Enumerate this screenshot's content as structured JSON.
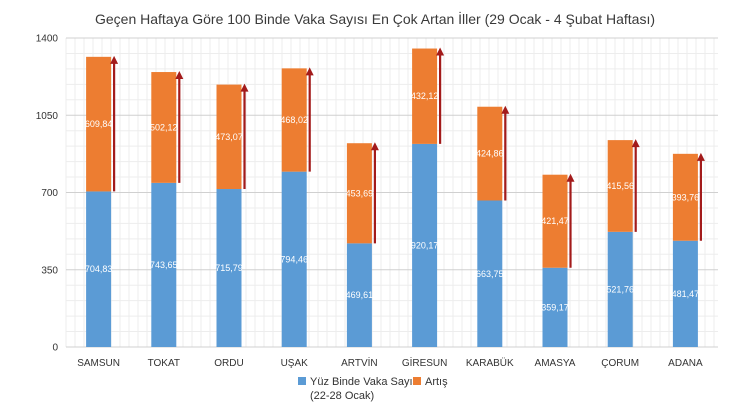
{
  "chart_data": {
    "type": "bar",
    "stacked": true,
    "title": "Geçen Haftaya Göre 100 Binde Vaka Sayısı En Çok Artan İller (29 Ocak - 4 Şubat Haftası)",
    "categories": [
      "SAMSUN",
      "TOKAT",
      "ORDU",
      "UŞAK",
      "ARTVİN",
      "GİRESUN",
      "KARABÜK",
      "AMASYA",
      "ÇORUM",
      "ADANA"
    ],
    "series": [
      {
        "name": "Yüz Binde Vaka Sayısı (22-28 Ocak)",
        "legend_lines": [
          "Yüz Binde Vaka Sayısı",
          "(22-28 Ocak)"
        ],
        "color": "#5b9bd5",
        "values": [
          704.83,
          743.65,
          715.79,
          794.46,
          469.61,
          920.17,
          663.75,
          359.17,
          521.76,
          481.47
        ],
        "labels": [
          "704,83",
          "743,65",
          "715,79",
          "794,46",
          "469,61",
          "920,17",
          "663,75",
          "359,17",
          "521,76",
          "481,47"
        ]
      },
      {
        "name": "Artış",
        "legend_lines": [
          "Artış"
        ],
        "color": "#ed7d31",
        "values": [
          609.84,
          502.12,
          473.07,
          468.02,
          453.69,
          432.12,
          424.86,
          421.47,
          415.56,
          393.76
        ],
        "labels": [
          "609,84",
          "502,12",
          "473,07",
          "468,02",
          "453,69",
          "432,12",
          "424,86",
          "421,47",
          "415,56",
          "393,76"
        ]
      }
    ],
    "ylim": [
      0,
      1400
    ],
    "yticks": [
      0,
      350,
      700,
      1050,
      1400
    ],
    "ytick_labels": [
      "0",
      "350",
      "700",
      "1050",
      "1400"
    ],
    "grid": true,
    "legend_position": "bottom",
    "arrow_color": "#a31b1b"
  }
}
